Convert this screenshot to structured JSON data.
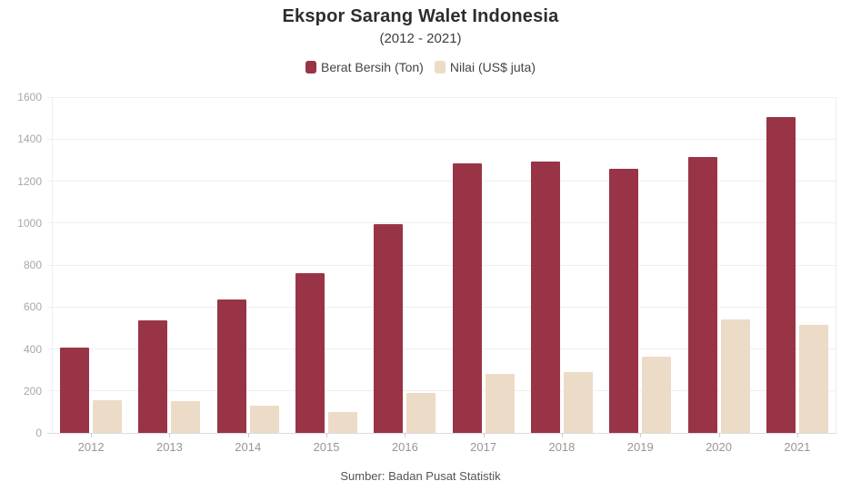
{
  "header": {
    "title": "Ekspor Sarang Walet Indonesia",
    "subtitle": "(2012 - 2021)"
  },
  "footer": {
    "source": "Sumber: Badan Pusat Statistik"
  },
  "colors": {
    "berat_bersih": "#993447",
    "nilai": "#ecdbc7",
    "grid": "#f0efef",
    "axis_line": "#dddddd",
    "y_label": "#aba6a6",
    "x_label": "#9b9595",
    "title_text": "#2d2d2d"
  },
  "chart_data": {
    "type": "bar",
    "title": "Ekspor Sarang Walet Indonesia",
    "subtitle": "(2012 - 2021)",
    "source": "Sumber: Badan Pusat Statistik",
    "categories": [
      "2012",
      "2013",
      "2014",
      "2015",
      "2016",
      "2017",
      "2018",
      "2019",
      "2020",
      "2021"
    ],
    "series": [
      {
        "name": "Berat Bersih (Ton)",
        "color": "#993447",
        "values": [
          405,
          537,
          636,
          760,
          993,
          1286,
          1291,
          1258,
          1313,
          1506
        ]
      },
      {
        "name": "Nilai (US$ juta)",
        "color": "#ecdbc7",
        "values": [
          155,
          152,
          130,
          100,
          190,
          279,
          290,
          365,
          540,
          516
        ]
      }
    ],
    "xlabel": "",
    "ylabel": "",
    "ylim": [
      0,
      1600
    ],
    "yticks": [
      0,
      200,
      400,
      600,
      800,
      1000,
      1200,
      1400,
      1600
    ],
    "grid": true,
    "legend_position": "top"
  }
}
